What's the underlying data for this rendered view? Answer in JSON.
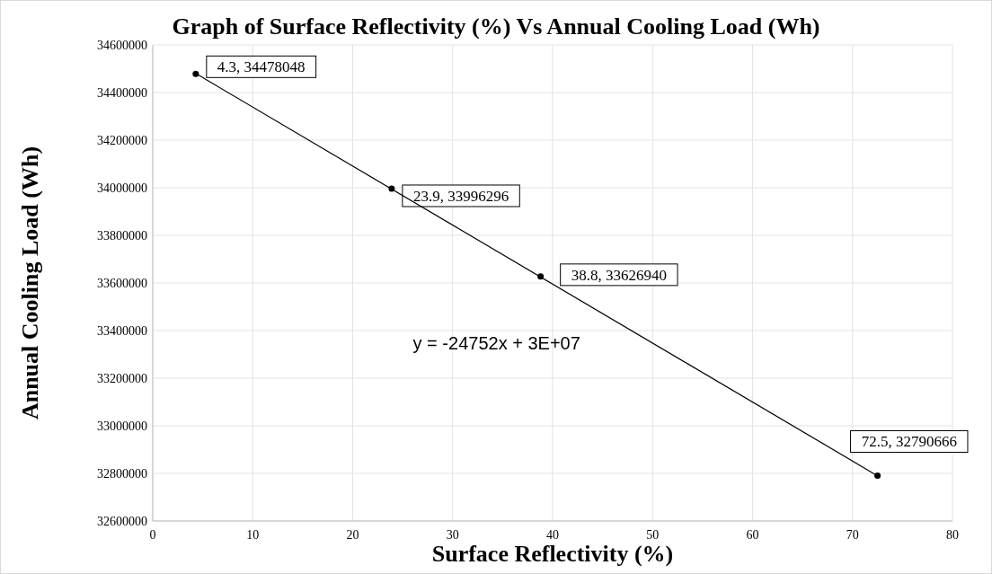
{
  "chart_data": {
    "type": "scatter",
    "title": "Graph of Surface Reflectivity (%) Vs Annual Cooling Load (Wh)",
    "xlabel": "Surface Reflectivity (%)",
    "ylabel": "Annual Cooling Load (Wh)",
    "series": [
      {
        "color": "#000000",
        "marker": "circle",
        "x": [
          4.3,
          23.9,
          38.8,
          72.5
        ],
        "values": [
          34478048,
          33996296,
          33626940,
          32790666
        ],
        "value_labels": [
          "4.3, 34478048",
          "23.9, 33996296",
          "38.8, 33626940",
          "72.5, 32790666"
        ]
      },
      {
        "type": "line",
        "color": "#000000",
        "line_style": "solid",
        "x": [
          4.3,
          72.5
        ],
        "values": [
          34480000,
          32790000
        ]
      }
    ],
    "annotations": [
      "y = -24752x + 3E+07"
    ],
    "xlim": [
      0,
      80
    ],
    "xticks": [
      0,
      10,
      20,
      30,
      40,
      50,
      60,
      70,
      80
    ],
    "ylim": [
      32600000,
      34600000
    ],
    "yticks": [
      32600000,
      32800000,
      33000000,
      33200000,
      33400000,
      33600000,
      33800000,
      34000000,
      34200000,
      34400000,
      34600000
    ],
    "grid": true
  }
}
